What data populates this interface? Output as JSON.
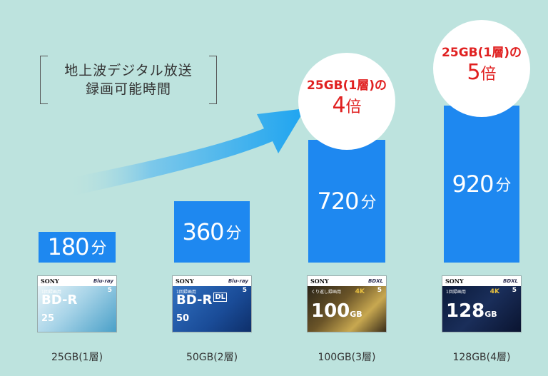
{
  "heading": {
    "line1": "地上波デジタル放送",
    "line2": "録画可能時間"
  },
  "colors": {
    "background": "#bde3de",
    "bar": "#1e88f0",
    "arrow": "#2aa8ee",
    "accent_red": "#e02020"
  },
  "chart_data": {
    "type": "bar",
    "categories": [
      "25GB(1層)",
      "50GB(2層)",
      "100GB(3層)",
      "128GB(4層)"
    ],
    "values": [
      180,
      360,
      720,
      920
    ],
    "unit": "分",
    "ylim": [
      0,
      1000
    ],
    "grid": false,
    "data_labels": [
      "180",
      "360",
      "720",
      "920"
    ],
    "annotations": [
      {
        "category": "100GB(3層)",
        "line1": "25GB(1層)の",
        "multiplier": "4",
        "suffix": "倍"
      },
      {
        "category": "128GB(4層)",
        "line1": "25GB(1層)の",
        "multiplier": "5",
        "suffix": "倍"
      }
    ]
  },
  "products": [
    {
      "brand": "SONY",
      "logo": "Blu-ray",
      "use": "1回録画用",
      "title": "BD-R",
      "capacity": "25",
      "pack": "5",
      "style": "white",
      "dl": ""
    },
    {
      "brand": "SONY",
      "logo": "Blu-ray",
      "use": "1回録画用",
      "title": "BD-R",
      "capacity": "50",
      "pack": "5",
      "style": "blue",
      "dl": "DL"
    },
    {
      "brand": "SONY",
      "logo": "BDXL",
      "use": "くり返し録画用",
      "title": "",
      "capacity": "100",
      "pack": "5",
      "style": "gold",
      "badge4k": "4K"
    },
    {
      "brand": "SONY",
      "logo": "BDXL",
      "use": "1回録画用",
      "title": "",
      "capacity": "128",
      "pack": "5",
      "style": "dark",
      "badge4k": "4K"
    }
  ]
}
